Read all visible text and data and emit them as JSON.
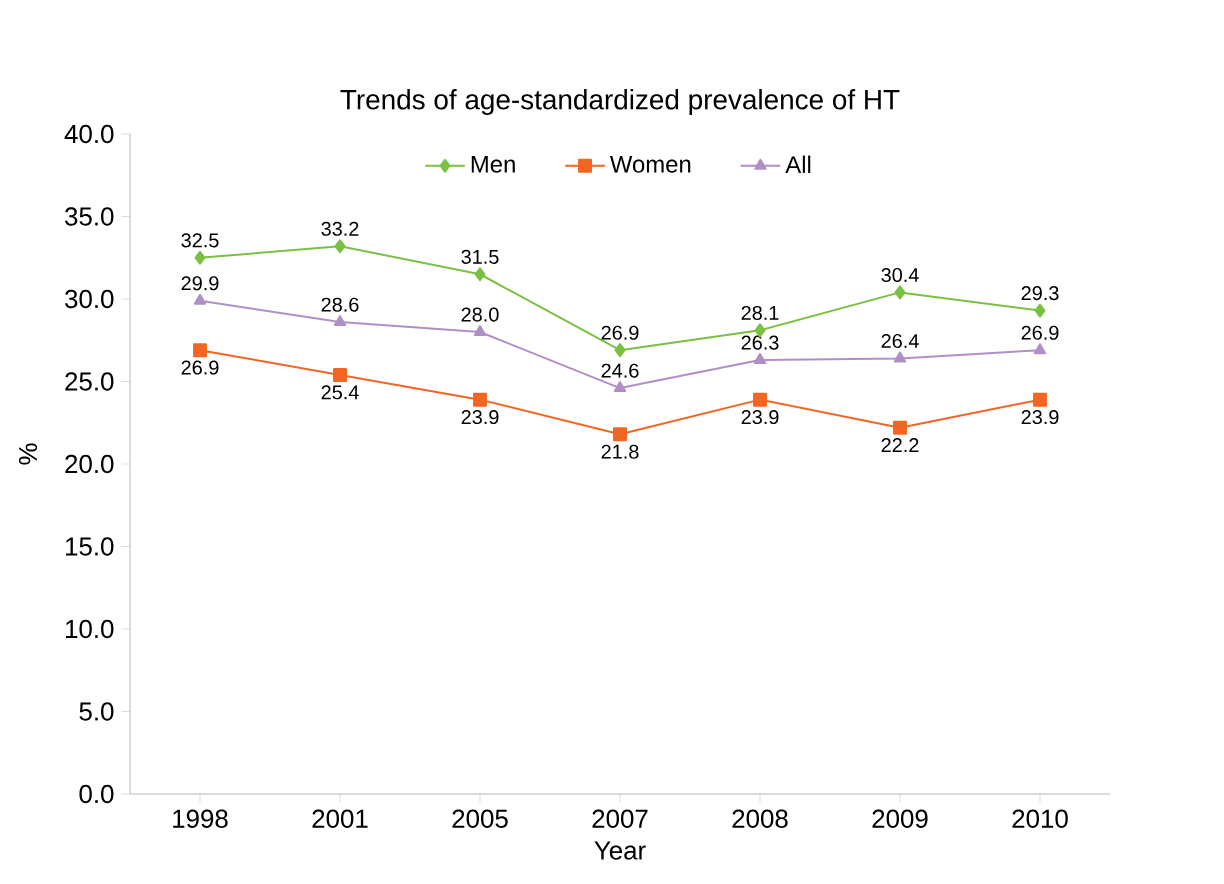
{
  "chart_data": {
    "type": "line",
    "title": "Trends of age-standardized prevalence of HT",
    "xlabel": "Year",
    "ylabel": "%",
    "categories": [
      "1998",
      "2001",
      "2005",
      "2007",
      "2008",
      "2009",
      "2010"
    ],
    "series": [
      {
        "name": "Men",
        "color": "#7ac143",
        "marker": "diamond",
        "values": [
          32.5,
          33.2,
          31.5,
          26.9,
          28.1,
          30.4,
          29.3
        ]
      },
      {
        "name": "Women",
        "color": "#f26522",
        "marker": "square",
        "values": [
          26.9,
          25.4,
          23.9,
          21.8,
          23.9,
          22.2,
          23.9
        ]
      },
      {
        "name": "All",
        "color": "#b08fc7",
        "marker": "triangle",
        "values": [
          29.9,
          28.6,
          28.0,
          24.6,
          26.3,
          26.4,
          26.9
        ],
        "value_labels": [
          "29.9",
          "28.6",
          "28.0",
          "24.6",
          "26.3",
          "26.4",
          "26.9"
        ]
      }
    ],
    "ylim": [
      0,
      40
    ],
    "yticks": [
      {
        "value": 0,
        "label": "0.0"
      },
      {
        "value": 5,
        "label": "5.0"
      },
      {
        "value": 10,
        "label": "10.0"
      },
      {
        "value": 15,
        "label": "15.0"
      },
      {
        "value": 20,
        "label": "20.0"
      },
      {
        "value": 25,
        "label": "25.0"
      },
      {
        "value": 30,
        "label": "30.0"
      },
      {
        "value": 35,
        "label": "35.0"
      },
      {
        "value": 40,
        "label": "40.0"
      }
    ],
    "legend": "top",
    "data_labels": true,
    "grid": false,
    "line_style": "solid"
  }
}
